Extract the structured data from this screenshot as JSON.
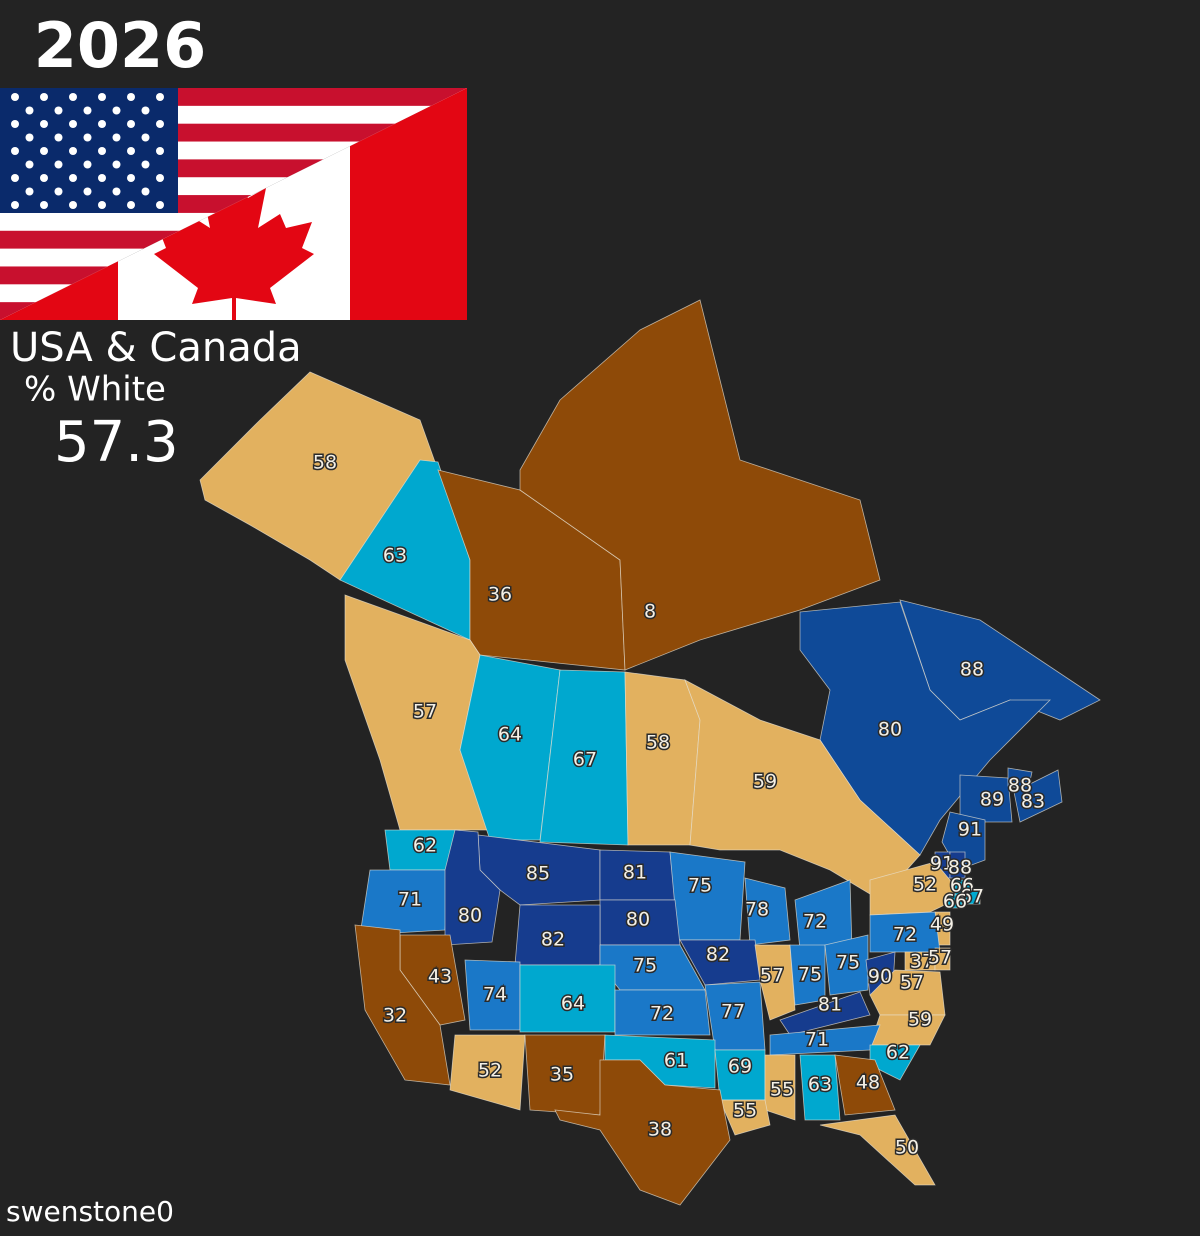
{
  "header": {
    "year": "2026",
    "title": "USA & Canada",
    "subtitle": "% White",
    "total": 57.3
  },
  "credit": "swenstone0",
  "regions": [
    {
      "value": 58,
      "color": "#e2b15f"
    },
    {
      "value": 63,
      "color": "#00a8cf"
    },
    {
      "value": 36,
      "color": "#8e4a08"
    },
    {
      "value": 8,
      "color": "#8e4a08"
    },
    {
      "value": 88,
      "color": "#0f4a98"
    },
    {
      "value": 80,
      "color": "#0f4a98"
    },
    {
      "value": 57,
      "color": "#e2b15f"
    },
    {
      "value": 64,
      "color": "#00a8cf"
    },
    {
      "value": 67,
      "color": "#00a8cf"
    },
    {
      "value": 58,
      "color": "#e2b15f"
    },
    {
      "value": 59,
      "color": "#e2b15f"
    },
    {
      "value": 89,
      "color": "#0f4a98"
    },
    {
      "value": 88,
      "color": "#0f4a98"
    },
    {
      "value": 83,
      "color": "#0f4a98"
    },
    {
      "value": 91,
      "color": "#0f4a98"
    },
    {
      "value": 62,
      "color": "#00a8cf"
    },
    {
      "value": 85,
      "color": "#163c8e"
    },
    {
      "value": 81,
      "color": "#163c8e"
    },
    {
      "value": 75,
      "color": "#1a78c8"
    },
    {
      "value": 91,
      "color": "#163c8e"
    },
    {
      "value": 88,
      "color": "#163c8e"
    },
    {
      "value": 52,
      "color": "#e2b15f"
    },
    {
      "value": 66,
      "color": "#00a8cf"
    },
    {
      "value": 67,
      "color": "#00a8cf"
    },
    {
      "value": 66,
      "color": "#00a8cf"
    },
    {
      "value": 71,
      "color": "#1a78c8"
    },
    {
      "value": 80,
      "color": "#163c8e"
    },
    {
      "value": 78,
      "color": "#1a78c8"
    },
    {
      "value": 72,
      "color": "#1a78c8"
    },
    {
      "value": 80,
      "color": "#163c8e"
    },
    {
      "value": 49,
      "color": "#e2b15f"
    },
    {
      "value": 82,
      "color": "#163c8e"
    },
    {
      "value": 82,
      "color": "#163c8e"
    },
    {
      "value": 72,
      "color": "#1a78c8"
    },
    {
      "value": 43,
      "color": "#8e4a08"
    },
    {
      "value": 75,
      "color": "#1a78c8"
    },
    {
      "value": 57,
      "color": "#e2b15f"
    },
    {
      "value": 75,
      "color": "#1a78c8"
    },
    {
      "value": 75,
      "color": "#1a78c8"
    },
    {
      "value": 90,
      "color": "#163c8e"
    },
    {
      "value": 37,
      "color": "#e2b15f"
    },
    {
      "value": 57,
      "color": "#e2b15f"
    },
    {
      "value": 57,
      "color": "#e2b15f"
    },
    {
      "value": 32,
      "color": "#8e4a08"
    },
    {
      "value": 74,
      "color": "#1a78c8"
    },
    {
      "value": 64,
      "color": "#00a8cf"
    },
    {
      "value": 72,
      "color": "#1a78c8"
    },
    {
      "value": 77,
      "color": "#1a78c8"
    },
    {
      "value": 81,
      "color": "#163c8e"
    },
    {
      "value": 59,
      "color": "#e2b15f"
    },
    {
      "value": 71,
      "color": "#1a78c8"
    },
    {
      "value": 62,
      "color": "#00a8cf"
    },
    {
      "value": 52,
      "color": "#e2b15f"
    },
    {
      "value": 35,
      "color": "#8e4a08"
    },
    {
      "value": 61,
      "color": "#00a8cf"
    },
    {
      "value": 69,
      "color": "#00a8cf"
    },
    {
      "value": 55,
      "color": "#e2b15f"
    },
    {
      "value": 63,
      "color": "#00a8cf"
    },
    {
      "value": 48,
      "color": "#8e4a08"
    },
    {
      "value": 55,
      "color": "#e2b15f"
    },
    {
      "value": 38,
      "color": "#8e4a08"
    },
    {
      "value": 50,
      "color": "#e2b15f"
    }
  ]
}
